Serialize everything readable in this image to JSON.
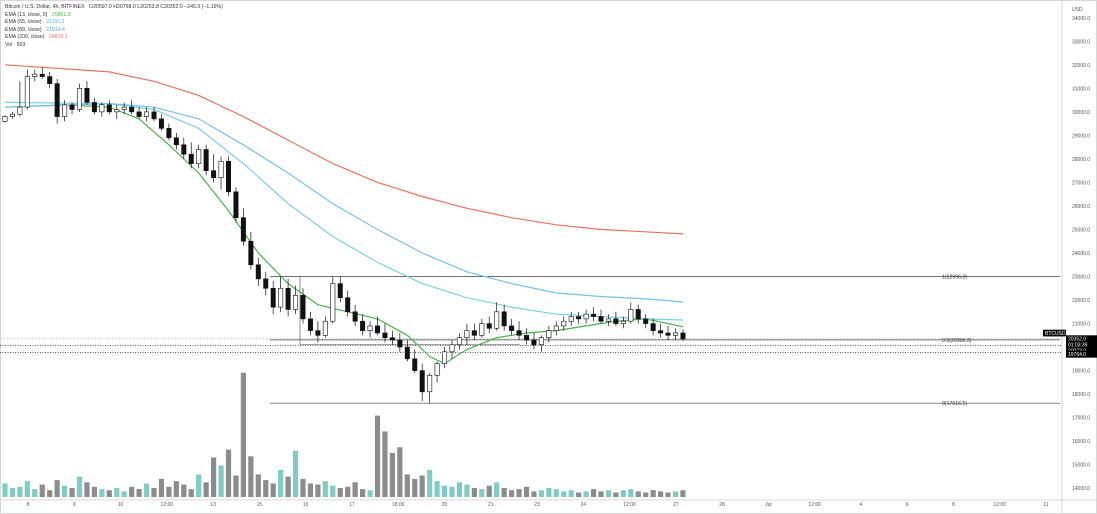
{
  "header": {
    "symbol": "Bitcoin / U.S. Dollar, 4h, BITFINEX",
    "ohlc": "O20597.0 H20768.0 L20253.8 C20352.0 −245.0 (−1.19%)"
  },
  "legend": [
    {
      "label": "EMA (13, close, 0)",
      "value": "20861.9",
      "color": "#4caf50"
    },
    {
      "label": "EMA (55, close)",
      "value": "21150.3",
      "color": "#7ecfe4"
    },
    {
      "label": "EMA (89, close)",
      "value": "21919.4",
      "color": "#79bfe8"
    },
    {
      "label": "EMA (200, close)",
      "value": "24810.1",
      "color": "#e57366"
    },
    {
      "label": "Vol",
      "value": "503",
      "color": "#333333"
    }
  ],
  "price_scale": {
    "currency": "USD",
    "ticks": [
      "34000.0",
      "33000.0",
      "32000.0",
      "31000.0",
      "30000.0",
      "29000.0",
      "28000.0",
      "27000.0",
      "26000.0",
      "25000.0",
      "24000.0",
      "23000.0",
      "22000.0",
      "21000.0",
      "20000.0",
      "19000.0",
      "18000.0",
      "17000.0",
      "16000.0",
      "15000.0",
      "14000.0"
    ]
  },
  "time_scale": {
    "ticks": [
      "8",
      "9",
      "10",
      "12:00",
      "13",
      "15",
      "16",
      "17",
      "18:00",
      "20",
      "21",
      "23",
      "24",
      "12:00",
      "27",
      "28",
      "Jul",
      "12:00",
      "4",
      "6",
      "8",
      "12:00",
      "11"
    ]
  },
  "price_tags": [
    {
      "text": "BTCUSD",
      "color": "#000000"
    },
    {
      "text": "20352.0",
      "color": "#000000"
    },
    {
      "text": "01:03:39",
      "color": "#000000"
    },
    {
      "text": "20073.0",
      "color": "#000000"
    },
    {
      "text": "19764.0",
      "color": "#000000"
    }
  ],
  "chart_data": {
    "type": "candlestick",
    "timeframe": "4h",
    "ylim": [
      13500,
      34500
    ],
    "fibonacci": [
      {
        "label": "1(22996.0)",
        "level": 1,
        "price": 22996.0
      },
      {
        "label": "0.5(20306.3)",
        "level": 0.5,
        "price": 20306.3
      },
      {
        "label": "0(17616.5)",
        "level": 0,
        "price": 17616.5
      }
    ],
    "horizontal_levels": [
      {
        "price": 20352.0,
        "style": "dotted"
      },
      {
        "price": 20073.0,
        "style": "dotted-black"
      },
      {
        "price": 19764.0,
        "style": "dotted-black"
      }
    ],
    "candles": [
      [
        29600,
        29850,
        29550,
        29800
      ],
      [
        29800,
        30000,
        29700,
        29900
      ],
      [
        29900,
        31300,
        29800,
        30200
      ],
      [
        30200,
        31800,
        30100,
        31500
      ],
      [
        31500,
        31800,
        31300,
        31600
      ],
      [
        31600,
        31900,
        31400,
        31500
      ],
      [
        31500,
        31700,
        31000,
        31200
      ],
      [
        31200,
        31400,
        29500,
        29800
      ],
      [
        29800,
        30500,
        29600,
        30300
      ],
      [
        30300,
        30400,
        29900,
        30100
      ],
      [
        30100,
        31200,
        30000,
        31000
      ],
      [
        31000,
        31300,
        30300,
        30400
      ],
      [
        30400,
        30600,
        29900,
        30000
      ],
      [
        30000,
        30400,
        29800,
        30300
      ],
      [
        30300,
        30500,
        29900,
        30000
      ],
      [
        30000,
        30300,
        29700,
        30100
      ],
      [
        30100,
        30400,
        29900,
        30200
      ],
      [
        30200,
        30500,
        29900,
        30000
      ],
      [
        30000,
        30200,
        29700,
        29800
      ],
      [
        29800,
        30200,
        29600,
        30000
      ],
      [
        30000,
        30200,
        29600,
        29700
      ],
      [
        29700,
        29900,
        29200,
        29300
      ],
      [
        29300,
        29500,
        28800,
        28900
      ],
      [
        28900,
        29100,
        28400,
        28600
      ],
      [
        28600,
        28900,
        28000,
        28200
      ],
      [
        28200,
        28700,
        27600,
        27800
      ],
      [
        27800,
        28600,
        27600,
        28400
      ],
      [
        28400,
        28600,
        27300,
        27500
      ],
      [
        27500,
        28200,
        27000,
        27200
      ],
      [
        27200,
        28100,
        26700,
        27900
      ],
      [
        27900,
        28100,
        26400,
        26600
      ],
      [
        26600,
        26800,
        25300,
        25500
      ],
      [
        25500,
        25900,
        24300,
        24500
      ],
      [
        24500,
        24900,
        23300,
        23500
      ],
      [
        23500,
        23800,
        22600,
        22900
      ],
      [
        22900,
        23200,
        22200,
        22500
      ],
      [
        22500,
        22800,
        21400,
        21700
      ],
      [
        21700,
        23000,
        21500,
        22500
      ],
      [
        22500,
        22900,
        21300,
        21600
      ],
      [
        21600,
        22600,
        21400,
        22200
      ],
      [
        22200,
        22500,
        21000,
        21200
      ],
      [
        21200,
        21500,
        20500,
        20700
      ],
      [
        20700,
        21100,
        20200,
        20500
      ],
      [
        20500,
        21300,
        20400,
        21100
      ],
      [
        21100,
        23000,
        21000,
        22700
      ],
      [
        22700,
        23000,
        21900,
        22100
      ],
      [
        22100,
        22400,
        21300,
        21500
      ],
      [
        21500,
        21800,
        20900,
        21100
      ],
      [
        21100,
        21400,
        20500,
        20700
      ],
      [
        20700,
        21100,
        20400,
        20900
      ],
      [
        20900,
        21300,
        20500,
        20600
      ],
      [
        20600,
        21000,
        20200,
        20400
      ],
      [
        20400,
        20700,
        20100,
        20300
      ],
      [
        20300,
        20600,
        19800,
        20000
      ],
      [
        20000,
        20300,
        19400,
        19500
      ],
      [
        19500,
        19900,
        18900,
        19000
      ],
      [
        19000,
        19300,
        17700,
        18100
      ],
      [
        18100,
        18900,
        17616,
        18800
      ],
      [
        18800,
        19400,
        18500,
        19300
      ],
      [
        19300,
        20000,
        19100,
        19800
      ],
      [
        19800,
        20300,
        19500,
        20100
      ],
      [
        20100,
        20600,
        19900,
        20400
      ],
      [
        20400,
        21000,
        20100,
        20700
      ],
      [
        20700,
        21000,
        20300,
        20500
      ],
      [
        20500,
        21200,
        20400,
        21000
      ],
      [
        21000,
        21300,
        20600,
        20800
      ],
      [
        20800,
        21900,
        20700,
        21500
      ],
      [
        21500,
        21800,
        20700,
        20900
      ],
      [
        20900,
        21200,
        20500,
        20700
      ],
      [
        20700,
        21100,
        20300,
        20500
      ],
      [
        20500,
        20800,
        20100,
        20300
      ],
      [
        20300,
        20600,
        19900,
        20100
      ],
      [
        20100,
        20500,
        19800,
        20400
      ],
      [
        20400,
        20900,
        20200,
        20700
      ],
      [
        20700,
        21100,
        20500,
        20900
      ],
      [
        20900,
        21300,
        20700,
        21100
      ],
      [
        21100,
        21500,
        20900,
        21300
      ],
      [
        21300,
        21500,
        21000,
        21200
      ],
      [
        21200,
        21600,
        21000,
        21400
      ],
      [
        21400,
        21700,
        21100,
        21300
      ],
      [
        21300,
        21600,
        21000,
        21100
      ],
      [
        21100,
        21400,
        20900,
        21200
      ],
      [
        21200,
        21500,
        20900,
        21000
      ],
      [
        21000,
        21300,
        20800,
        21100
      ],
      [
        21100,
        21900,
        21000,
        21600
      ],
      [
        21600,
        21800,
        21000,
        21200
      ],
      [
        21200,
        21400,
        20800,
        21000
      ],
      [
        21000,
        21200,
        20500,
        20700
      ],
      [
        20700,
        21000,
        20400,
        20600
      ],
      [
        20600,
        20900,
        20300,
        20500
      ],
      [
        20500,
        20800,
        20300,
        20600
      ],
      [
        20600,
        20768,
        20253,
        20352
      ]
    ],
    "volumes": [
      1.2,
      0.8,
      0.9,
      1.4,
      0.7,
      1.1,
      0.6,
      1.5,
      1.0,
      0.8,
      1.8,
      1.3,
      0.9,
      0.7,
      0.6,
      0.8,
      0.5,
      0.9,
      0.7,
      1.2,
      0.8,
      1.6,
      0.9,
      1.4,
      1.1,
      0.7,
      2.0,
      1.3,
      3.5,
      2.8,
      4.2,
      1.9,
      11.0,
      3.6,
      2.0,
      1.5,
      1.2,
      2.4,
      1.8,
      4.1,
      1.6,
      1.2,
      1.1,
      1.4,
      1.0,
      0.8,
      0.9,
      1.3,
      0.7,
      0.6,
      7.2,
      5.8,
      3.9,
      4.4,
      2.0,
      1.6,
      1.9,
      2.4,
      1.4,
      1.0,
      0.9,
      1.3,
      1.1,
      0.8,
      0.7,
      1.0,
      1.3,
      0.8,
      0.6,
      0.7,
      0.9,
      0.5,
      0.6,
      0.8,
      0.7,
      0.5,
      0.6,
      0.4,
      0.5,
      0.7,
      0.5,
      0.6,
      0.4,
      0.6,
      0.7,
      0.5,
      0.4,
      0.6,
      0.5,
      0.4,
      0.5,
      0.6
    ],
    "ema": [
      {
        "name": "EMA (13, close, 0)",
        "color": "#4caf50",
        "points": [
          [
            0,
            30200
          ],
          [
            8,
            30300
          ],
          [
            14,
            30200
          ],
          [
            18,
            29700
          ],
          [
            22,
            28600
          ],
          [
            26,
            27400
          ],
          [
            30,
            25800
          ],
          [
            34,
            24000
          ],
          [
            38,
            22700
          ],
          [
            42,
            21800
          ],
          [
            46,
            21500
          ],
          [
            50,
            21200
          ],
          [
            54,
            20500
          ],
          [
            57,
            19600
          ],
          [
            59,
            19300
          ],
          [
            62,
            19900
          ],
          [
            66,
            20400
          ],
          [
            70,
            20600
          ],
          [
            74,
            20700
          ],
          [
            78,
            20900
          ],
          [
            82,
            21100
          ],
          [
            86,
            21200
          ],
          [
            89,
            21000
          ],
          [
            91,
            20862
          ]
        ]
      },
      {
        "name": "EMA (55, close)",
        "color": "#7ecfe4",
        "points": [
          [
            0,
            30400
          ],
          [
            14,
            30350
          ],
          [
            20,
            30100
          ],
          [
            26,
            29300
          ],
          [
            32,
            27800
          ],
          [
            38,
            26100
          ],
          [
            44,
            24700
          ],
          [
            50,
            23600
          ],
          [
            56,
            22700
          ],
          [
            62,
            22100
          ],
          [
            68,
            21700
          ],
          [
            74,
            21400
          ],
          [
            80,
            21300
          ],
          [
            86,
            21200
          ],
          [
            91,
            21150
          ]
        ]
      },
      {
        "name": "EMA (89, close)",
        "color": "#79bfe8",
        "points": [
          [
            0,
            30200
          ],
          [
            14,
            30350
          ],
          [
            20,
            30200
          ],
          [
            26,
            29700
          ],
          [
            32,
            28600
          ],
          [
            38,
            27400
          ],
          [
            44,
            26100
          ],
          [
            50,
            25000
          ],
          [
            56,
            24000
          ],
          [
            62,
            23200
          ],
          [
            68,
            22700
          ],
          [
            74,
            22300
          ],
          [
            80,
            22150
          ],
          [
            86,
            22050
          ],
          [
            91,
            21919
          ]
        ]
      },
      {
        "name": "EMA (200, close)",
        "color": "#e57366",
        "points": [
          [
            0,
            32000
          ],
          [
            14,
            31700
          ],
          [
            20,
            31300
          ],
          [
            26,
            30700
          ],
          [
            32,
            29800
          ],
          [
            38,
            28800
          ],
          [
            44,
            27800
          ],
          [
            50,
            27000
          ],
          [
            56,
            26400
          ],
          [
            62,
            25900
          ],
          [
            68,
            25500
          ],
          [
            74,
            25200
          ],
          [
            80,
            25000
          ],
          [
            86,
            24900
          ],
          [
            91,
            24810
          ]
        ]
      }
    ]
  }
}
